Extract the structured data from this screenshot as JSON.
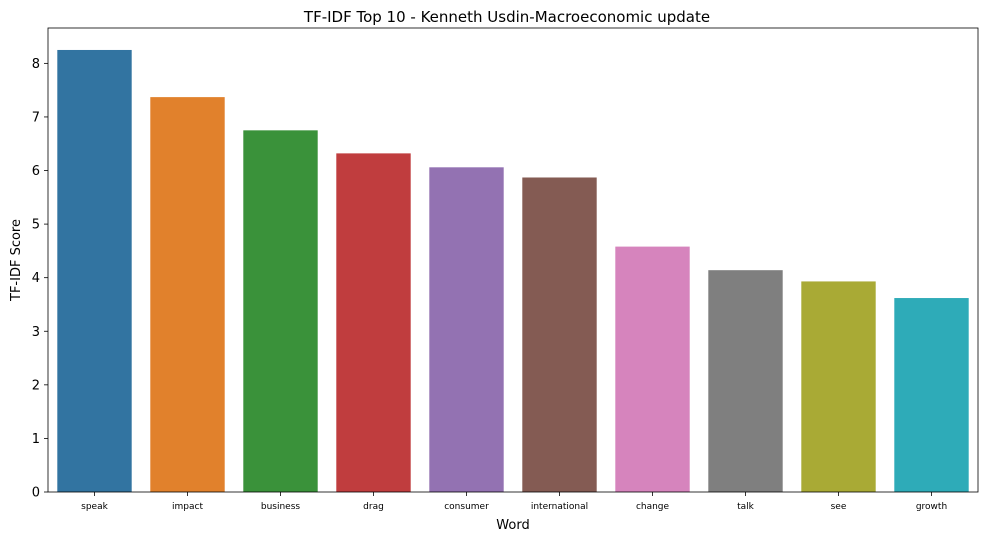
{
  "chart_data": {
    "type": "bar",
    "title": "TF-IDF Top 10 - Kenneth Usdin-Macroeconomic update",
    "xlabel": "Word",
    "ylabel": "TF-IDF Score",
    "categories": [
      "speak",
      "impact",
      "business",
      "drag",
      "consumer",
      "international",
      "change",
      "talk",
      "see",
      "growth"
    ],
    "values": [
      8.25,
      7.37,
      6.75,
      6.32,
      6.06,
      5.87,
      4.58,
      4.14,
      3.93,
      3.62
    ],
    "colors": [
      "#3274a1",
      "#e1812c",
      "#3a923a",
      "#c03d3e",
      "#9372b2",
      "#845b53",
      "#d684bd",
      "#7f7f7f",
      "#a9aa35",
      "#2eabb8"
    ],
    "ylim": [
      0,
      8.66
    ],
    "yticks": [
      0,
      1,
      2,
      3,
      4,
      5,
      6,
      7,
      8
    ],
    "grid": false,
    "legend": "none"
  }
}
